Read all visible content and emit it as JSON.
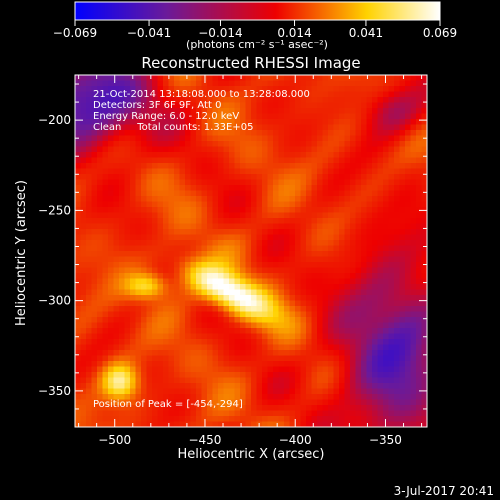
{
  "colors": {
    "background": "#000000",
    "foreground": "#ffffff",
    "colormap": [
      "#0000ff",
      "#6a1a9a",
      "#ee0000",
      "#ffd200",
      "#ffffff"
    ]
  },
  "colorbar": {
    "ticks": [
      "-0.069",
      "-0.041",
      "-0.014",
      "0.014",
      "0.041",
      "0.069"
    ],
    "units": "(photons cm⁻² s⁻¹ asec⁻²)",
    "range": [
      -0.069,
      0.069
    ]
  },
  "chart_data": {
    "type": "heatmap",
    "title": "Reconstructed RHESSI Image",
    "xlabel": "Heliocentric X (arcsec)",
    "ylabel": "Heliocentric Y (arcsec)",
    "xlim": [
      -522,
      -327
    ],
    "ylim": [
      -370,
      -175
    ],
    "xticks": [
      -500,
      -450,
      -400,
      -350
    ],
    "yticks": [
      -200,
      -250,
      -300,
      -350
    ],
    "annotations": [
      "21-Oct-2014 13:18:08.000 to 13:28:08.000",
      "Detectors: 3F 6F 9F, Att 0",
      "Energy Range: 6.0 - 12.0 keV",
      "Clean     Total counts: 1.33E+05"
    ],
    "peak_label": "Position of Peak = [-454,-294]",
    "peak": [
      -454,
      -294
    ],
    "sources": [
      {
        "x": -437,
        "y": -295,
        "sx": 20,
        "sy": 7,
        "angle_deg": -28,
        "amp": 0.062
      },
      {
        "x": -482,
        "y": -292,
        "sx": 8,
        "sy": 5,
        "angle_deg": 0,
        "amp": 0.036
      },
      {
        "x": -497,
        "y": -345,
        "sx": 7,
        "sy": 7,
        "angle_deg": 0,
        "amp": 0.046
      }
    ],
    "negative_regions": [
      {
        "x": -515,
        "y": -190,
        "sx": 25,
        "sy": 18,
        "amp": -0.06
      },
      {
        "x": -345,
        "y": -330,
        "sx": 22,
        "sy": 40,
        "amp": -0.05
      },
      {
        "x": -345,
        "y": -195,
        "sx": 12,
        "sy": 10,
        "amp": -0.03
      }
    ]
  },
  "footer": {
    "date": "3-Jul-2017 20:41"
  }
}
